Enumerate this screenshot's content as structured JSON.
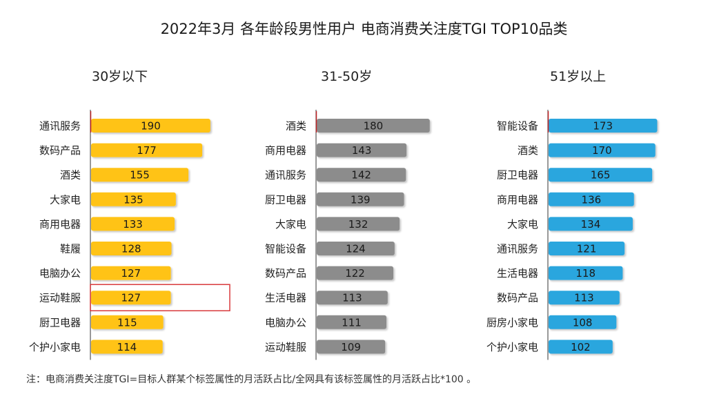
{
  "title": "2022年3月 各年龄段男性用户 电商消费关注度TGI TOP10品类",
  "footnote": "注：电商消费关注度TGI=目标人群某个标签属性的月活跃占比/全网具有该标签属性的月活跃占比*100 。",
  "colors": {
    "yellow": "#FFC316",
    "gray": "#8C8C8C",
    "blue": "#2AA6DE",
    "highlight_box": "#D9383B",
    "axis_line": "#C0282A"
  },
  "chart_data": [
    {
      "type": "bar",
      "orientation": "horizontal",
      "subtitle": "30岁以下",
      "color": "yellow",
      "categories": [
        "通讯服务",
        "数码产品",
        "酒类",
        "大家电",
        "商用电器",
        "鞋履",
        "电脑办公",
        "运动鞋服",
        "厨卫电器",
        "个护小家电"
      ],
      "values": [
        190,
        177,
        155,
        135,
        133,
        128,
        127,
        127,
        115,
        114
      ],
      "highlighted": "运动鞋服"
    },
    {
      "type": "bar",
      "orientation": "horizontal",
      "subtitle": "31-50岁",
      "color": "gray",
      "categories": [
        "酒类",
        "商用电器",
        "通讯服务",
        "厨卫电器",
        "大家电",
        "智能设备",
        "数码产品",
        "生活电器",
        "电脑办公",
        "运动鞋服"
      ],
      "values": [
        180,
        143,
        142,
        139,
        132,
        124,
        122,
        113,
        111,
        109
      ]
    },
    {
      "type": "bar",
      "orientation": "horizontal",
      "subtitle": "51岁以上",
      "color": "blue",
      "categories": [
        "智能设备",
        "酒类",
        "厨卫电器",
        "商用电器",
        "大家电",
        "通讯服务",
        "生活电器",
        "数码产品",
        "厨房小家电",
        "个护小家电"
      ],
      "values": [
        173,
        170,
        165,
        136,
        134,
        121,
        118,
        113,
        108,
        102
      ]
    }
  ]
}
